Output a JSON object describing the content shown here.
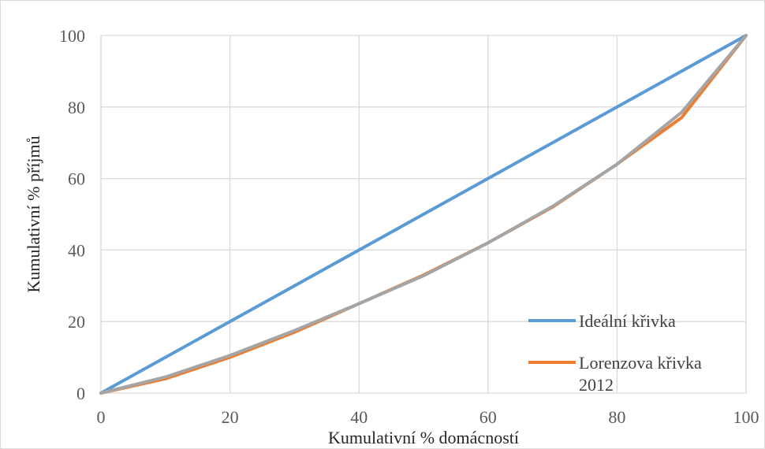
{
  "chart_data": {
    "type": "line",
    "xlabel": "Kumulativní % domácností",
    "ylabel": "Kumulativní % příjmů",
    "xlim": [
      0,
      100
    ],
    "ylim": [
      0,
      100
    ],
    "x_ticks": [
      "0",
      "20",
      "40",
      "60",
      "80",
      "100"
    ],
    "y_ticks": [
      "0",
      "20",
      "40",
      "60",
      "80",
      "100"
    ],
    "grid": true,
    "legend": "bottom-right",
    "series": [
      {
        "name": "Ideální křivka",
        "color": "#5b9bd5",
        "x": [
          0,
          100
        ],
        "values": [
          0,
          100
        ]
      },
      {
        "name": "Lorenzova křivka 2012",
        "color": "#ed7d31",
        "x": [
          0,
          10,
          20,
          30,
          40,
          50,
          60,
          70,
          80,
          90,
          100
        ],
        "values": [
          0,
          4,
          10,
          17,
          25,
          33,
          42,
          52,
          64,
          77,
          100
        ]
      },
      {
        "name": "",
        "color": "#a5a5a5",
        "x": [
          0,
          10,
          20,
          30,
          40,
          50,
          60,
          70,
          80,
          90,
          100
        ],
        "values": [
          0,
          4.5,
          10.5,
          17.5,
          25,
          32.8,
          42,
          52.2,
          64,
          78.5,
          100
        ]
      }
    ]
  }
}
